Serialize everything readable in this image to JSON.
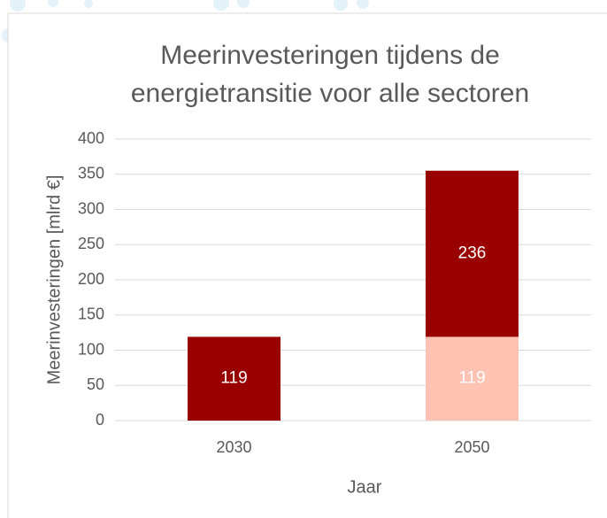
{
  "chart_data": {
    "type": "stacked_bar",
    "title": [
      "Meerinvesteringen tijdens de",
      "energietransitie voor alle sectoren"
    ],
    "x_label": "Jaar",
    "y_label": "Meerinvesteringen [mlrd €]",
    "categories": [
      "2030",
      "2050"
    ],
    "series": [
      {
        "color": "#ffc2b3",
        "values": [
          null,
          119
        ]
      },
      {
        "color": "#990000",
        "values": [
          119,
          236
        ]
      }
    ],
    "ylim": [
      0,
      400
    ],
    "yticks": [
      0,
      50,
      100,
      150,
      200,
      250,
      300,
      350,
      400
    ],
    "grid": true
  }
}
